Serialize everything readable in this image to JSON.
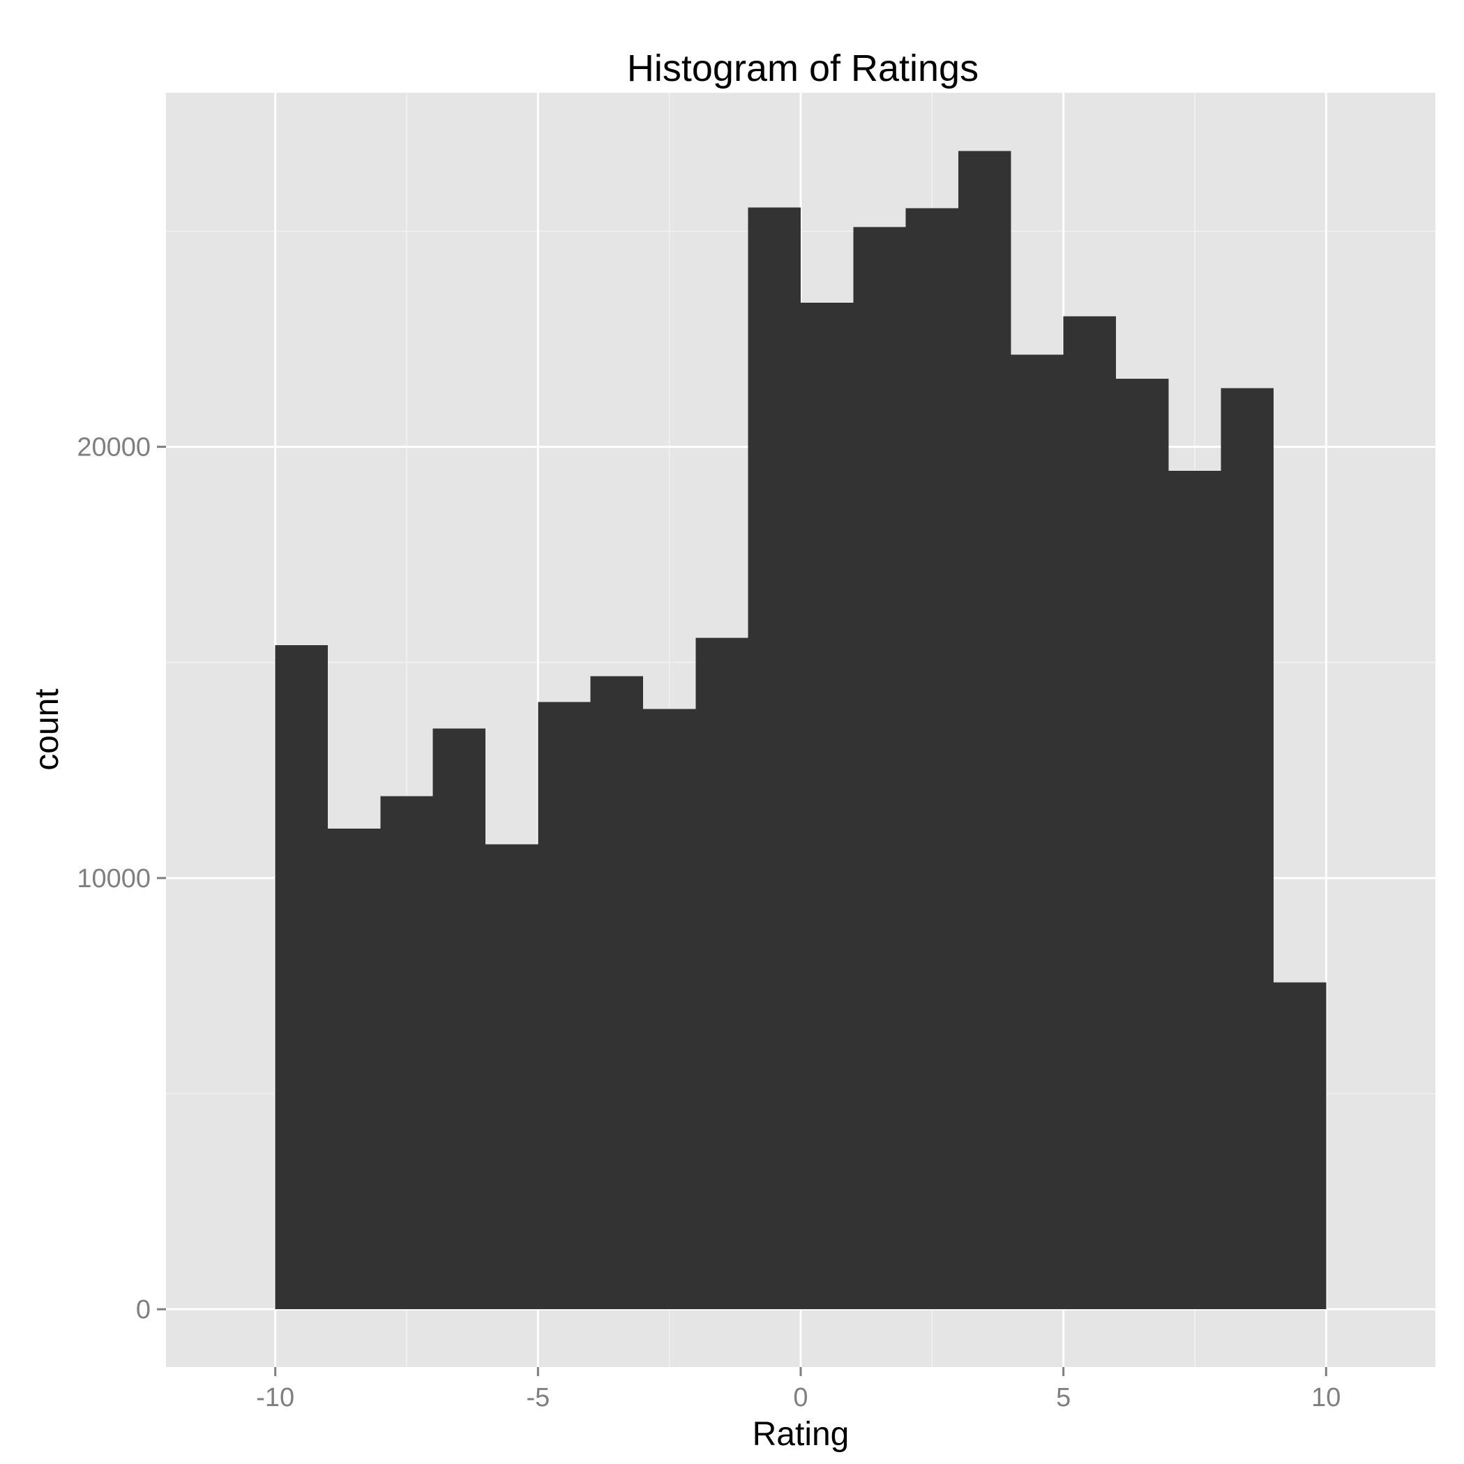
{
  "chart_data": {
    "type": "bar",
    "title": "Histogram of Ratings",
    "xlabel": "Rating",
    "ylabel": "count",
    "bins": [
      {
        "x0": -10,
        "x1": -9,
        "count": 15400
      },
      {
        "x0": -9,
        "x1": -8,
        "count": 11150
      },
      {
        "x0": -8,
        "x1": -7,
        "count": 11900
      },
      {
        "x0": -7,
        "x1": -6,
        "count": 13470
      },
      {
        "x0": -6,
        "x1": -5,
        "count": 10780
      },
      {
        "x0": -5,
        "x1": -4,
        "count": 14080
      },
      {
        "x0": -4,
        "x1": -3,
        "count": 14680
      },
      {
        "x0": -3,
        "x1": -2,
        "count": 13920
      },
      {
        "x0": -2,
        "x1": -1,
        "count": 15570
      },
      {
        "x0": -1,
        "x1": 0,
        "count": 25550
      },
      {
        "x0": 0,
        "x1": 1,
        "count": 23340
      },
      {
        "x0": 1,
        "x1": 2,
        "count": 25100
      },
      {
        "x0": 2,
        "x1": 3,
        "count": 25530
      },
      {
        "x0": 3,
        "x1": 4,
        "count": 26860
      },
      {
        "x0": 4,
        "x1": 5,
        "count": 22140
      },
      {
        "x0": 5,
        "x1": 6,
        "count": 23030
      },
      {
        "x0": 6,
        "x1": 7,
        "count": 21580
      },
      {
        "x0": 7,
        "x1": 8,
        "count": 19440
      },
      {
        "x0": 8,
        "x1": 9,
        "count": 21360
      },
      {
        "x0": 9,
        "x1": 10,
        "count": 7580
      }
    ],
    "x_ticks": [
      -10,
      -5,
      0,
      5,
      10
    ],
    "x_tick_labels": [
      "-10",
      "-5",
      "0",
      "5",
      "10"
    ],
    "y_ticks": [
      0,
      10000,
      20000
    ],
    "y_tick_labels": [
      "0",
      "10000",
      "20000"
    ],
    "xlim": [
      -12.08,
      12.08
    ],
    "ylim": [
      -1340,
      28210
    ],
    "grid": true,
    "colors": {
      "bar": "#333333",
      "panel_background": "#e5e5e5",
      "grid_major": "#ffffff",
      "grid_minor": "#f2f2f2",
      "tick_label": "#7f7f7f"
    }
  }
}
